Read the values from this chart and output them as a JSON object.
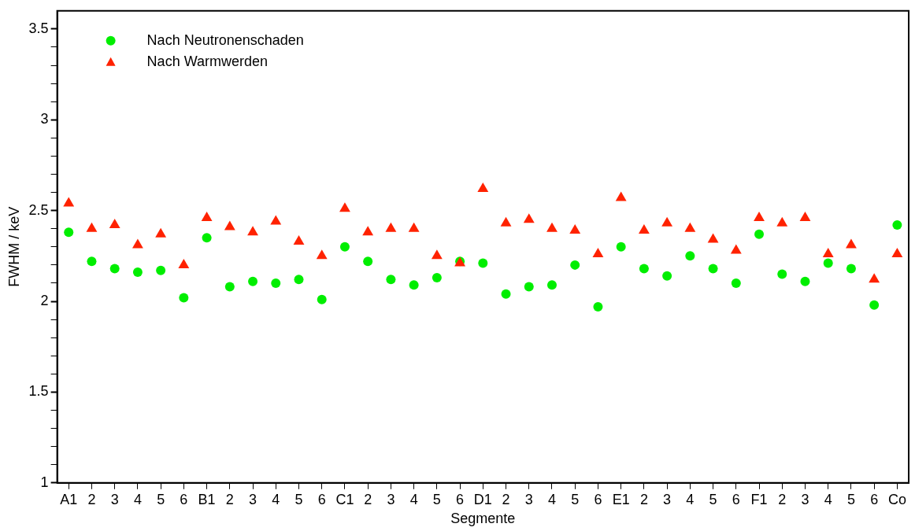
{
  "chart_data": {
    "type": "scatter",
    "xlabel": "Segmente",
    "ylabel": "FWHM / keV",
    "categories": [
      "A1",
      "2",
      "3",
      "4",
      "5",
      "6",
      "B1",
      "2",
      "3",
      "4",
      "5",
      "6",
      "C1",
      "2",
      "3",
      "4",
      "5",
      "6",
      "D1",
      "2",
      "3",
      "4",
      "5",
      "6",
      "E1",
      "2",
      "3",
      "4",
      "5",
      "6",
      "F1",
      "2",
      "3",
      "4",
      "5",
      "6",
      "Co"
    ],
    "series": [
      {
        "name": "Nach Neutronenschaden",
        "color": "#00ee00",
        "marker": "circle",
        "values": [
          2.38,
          2.22,
          2.18,
          2.16,
          2.17,
          2.02,
          2.35,
          2.08,
          2.11,
          2.1,
          2.12,
          2.01,
          2.3,
          2.22,
          2.12,
          2.09,
          2.13,
          2.22,
          2.21,
          2.04,
          2.08,
          2.09,
          2.2,
          1.97,
          2.3,
          2.18,
          2.14,
          2.25,
          2.18,
          2.1,
          2.37,
          2.15,
          2.11,
          2.21,
          2.18,
          1.98,
          2.42
        ]
      },
      {
        "name": "Nach Warmwerden",
        "color": "#ff2200",
        "marker": "triangle",
        "values": [
          2.54,
          2.4,
          2.42,
          2.31,
          2.37,
          2.2,
          2.46,
          2.41,
          2.38,
          2.44,
          2.33,
          2.25,
          2.51,
          2.38,
          2.4,
          2.4,
          2.25,
          2.21,
          2.62,
          2.43,
          2.45,
          2.4,
          2.39,
          2.26,
          2.57,
          2.39,
          2.43,
          2.4,
          2.34,
          2.28,
          2.46,
          2.43,
          2.46,
          2.26,
          2.31,
          2.12,
          2.26
        ]
      }
    ],
    "ylim": [
      1,
      3.6
    ],
    "yticks": [
      1,
      {
        "value": 1.1,
        "label": null
      },
      {
        "value": 1.2,
        "label": null
      },
      {
        "value": 1.3,
        "label": null
      },
      {
        "value": 1.4,
        "label": null
      },
      1.5,
      {
        "value": 1.6,
        "label": null
      },
      {
        "value": 1.7,
        "label": null
      },
      {
        "value": 1.8,
        "label": null
      },
      {
        "value": 1.9,
        "label": null
      },
      2,
      {
        "value": 2.1,
        "label": null
      },
      {
        "value": 2.2,
        "label": null
      },
      {
        "value": 2.3,
        "label": null
      },
      {
        "value": 2.4,
        "label": null
      },
      2.5,
      {
        "value": 2.6,
        "label": null
      },
      {
        "value": 2.7,
        "label": null
      },
      {
        "value": 2.8,
        "label": null
      },
      {
        "value": 2.9,
        "label": null
      },
      3,
      {
        "value": 3.1,
        "label": null
      },
      {
        "value": 3.2,
        "label": null
      },
      {
        "value": 3.3,
        "label": null
      },
      {
        "value": 3.4,
        "label": null
      },
      3.5
    ],
    "grid": false,
    "legend": "top left"
  }
}
